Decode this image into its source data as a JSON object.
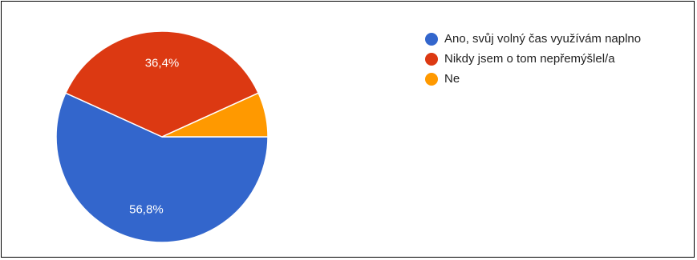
{
  "chart_data": {
    "type": "pie",
    "slices": [
      {
        "label": "Ano, svůj volný čas využívám naplno",
        "value": 56.8,
        "value_label": "56,8%",
        "color": "#3366cc"
      },
      {
        "label": "Nikdy jsem o tom nepřemýšlel/a",
        "value": 36.4,
        "value_label": "36,4%",
        "color": "#dc3912"
      },
      {
        "label": "Ne",
        "value": 6.8,
        "value_label": "",
        "color": "#ff9900"
      }
    ],
    "legend_position": "right"
  }
}
